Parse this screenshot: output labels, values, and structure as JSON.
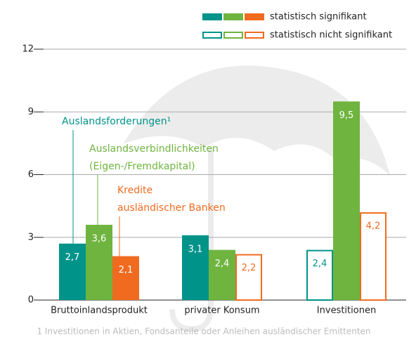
{
  "chart_data": {
    "type": "bar",
    "categories": [
      "Bruttoinlandsprodukt",
      "privater Konsum",
      "Investitionen"
    ],
    "series": [
      {
        "name": [
          "Auslandsforderungen¹"
        ],
        "color": "#00938a",
        "values": [
          2.7,
          3.1,
          2.4
        ],
        "value_labels": [
          "2,7",
          "3,1",
          "2,4"
        ],
        "significant": [
          true,
          true,
          false
        ]
      },
      {
        "name": [
          "Auslandsverbindlichkeiten",
          "(Eigen-/Fremdkapital)"
        ],
        "color": "#6fb43f",
        "values": [
          3.6,
          2.4,
          9.5
        ],
        "value_labels": [
          "3,6",
          "2,4",
          "9,5"
        ],
        "significant": [
          true,
          true,
          true
        ]
      },
      {
        "name": [
          "Kredite",
          "ausländischer Banken"
        ],
        "color": "#f06b1f",
        "values": [
          2.1,
          2.2,
          4.2
        ],
        "value_labels": [
          "2,1",
          "2,2",
          "4,2"
        ],
        "significant": [
          true,
          false,
          false
        ]
      }
    ],
    "legend": [
      {
        "label": "statistisch signifikant",
        "filled": true
      },
      {
        "label": "statistisch nicht signifikant",
        "filled": false
      }
    ],
    "ylim": [
      0,
      12
    ],
    "yticks": [
      0,
      3,
      6,
      9,
      12
    ],
    "grid": true,
    "footnote": "1 Investitionen in Aktien, Fondsanteile oder Anleihen ausländischer Emittenten"
  }
}
